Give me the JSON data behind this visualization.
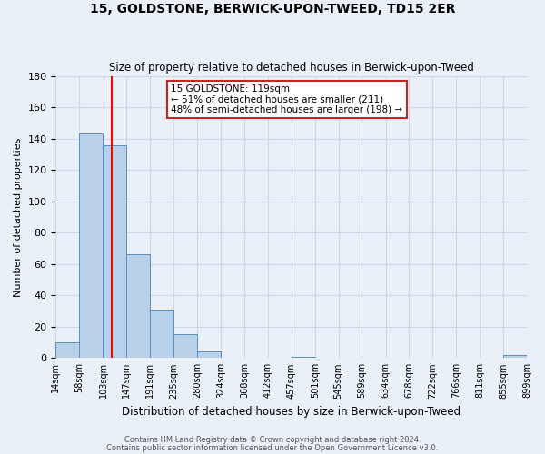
{
  "title": "15, GOLDSTONE, BERWICK-UPON-TWEED, TD15 2ER",
  "subtitle": "Size of property relative to detached houses in Berwick-upon-Tweed",
  "xlabel": "Distribution of detached houses by size in Berwick-upon-Tweed",
  "ylabel": "Number of detached properties",
  "footnote1": "Contains HM Land Registry data © Crown copyright and database right 2024.",
  "footnote2": "Contains public sector information licensed under the Open Government Licence v3.0.",
  "annotation_title": "15 GOLDSTONE: 119sqm",
  "annotation_line1": "← 51% of detached houses are smaller (211)",
  "annotation_line2": "48% of semi-detached houses are larger (198) →",
  "bin_edges": [
    14,
    58,
    103,
    147,
    191,
    235,
    280,
    324,
    368,
    412,
    457,
    501,
    545,
    589,
    634,
    678,
    722,
    766,
    811,
    855,
    899
  ],
  "bin_counts": [
    10,
    143,
    136,
    66,
    31,
    15,
    4,
    0,
    0,
    0,
    1,
    0,
    0,
    0,
    0,
    0,
    0,
    0,
    0,
    2
  ],
  "tick_labels": [
    "14sqm",
    "58sqm",
    "103sqm",
    "147sqm",
    "191sqm",
    "235sqm",
    "280sqm",
    "324sqm",
    "368sqm",
    "412sqm",
    "457sqm",
    "501sqm",
    "545sqm",
    "589sqm",
    "634sqm",
    "678sqm",
    "722sqm",
    "766sqm",
    "811sqm",
    "855sqm",
    "899sqm"
  ],
  "bar_color": "#b8d0e8",
  "bar_edge_color": "#5a8fc0",
  "grid_color": "#d0d8e8",
  "background_color": "#eaf0f8",
  "red_line_x": 119,
  "ylim": [
    0,
    180
  ],
  "yticks": [
    0,
    20,
    40,
    60,
    80,
    100,
    120,
    140,
    160,
    180
  ]
}
